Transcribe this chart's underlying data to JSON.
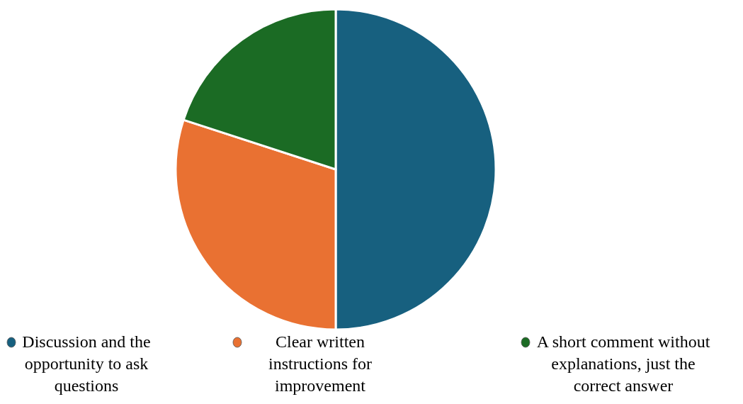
{
  "chart_data": {
    "type": "pie",
    "categories": [
      "Discussion and the opportunity to ask questions",
      "Clear written instructions for improvement",
      "A short comment without explanations, just the correct answer"
    ],
    "values": [
      50,
      30,
      20
    ],
    "colors": [
      "#17607f",
      "#e97132",
      "#1b6b24"
    ],
    "legend": "bottom"
  }
}
